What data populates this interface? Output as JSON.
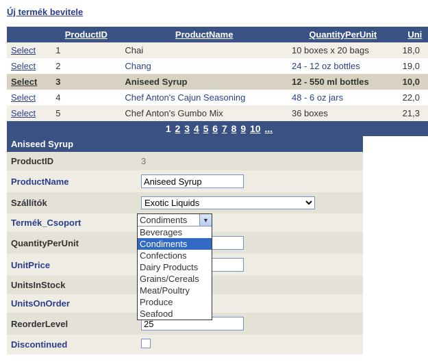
{
  "topLink": "Új termék bevitele",
  "grid": {
    "headers": [
      "",
      "ProductID",
      "ProductName",
      "QuantityPerUnit",
      "Uni"
    ],
    "selectLabel": "Select",
    "selectedIndex": 2,
    "rows": [
      {
        "id": "1",
        "name": "Chai",
        "qpu": "10 boxes x 20 bags",
        "price": "18,0",
        "nameLink": false
      },
      {
        "id": "2",
        "name": "Chang",
        "qpu": "24 - 12 oz bottles",
        "price": "19,0",
        "nameLink": true
      },
      {
        "id": "3",
        "name": "Aniseed Syrup",
        "qpu": "12 - 550 ml bottles",
        "price": "10,0",
        "nameLink": false
      },
      {
        "id": "4",
        "name": "Chef Anton's Cajun Seasoning",
        "qpu": "48 - 6 oz jars",
        "price": "22,0",
        "nameLink": true
      },
      {
        "id": "5",
        "name": "Chef Anton's Gumbo Mix",
        "qpu": "36 boxes",
        "price": "21,3",
        "nameLink": false
      }
    ]
  },
  "pager": {
    "pages": [
      "1",
      "2",
      "3",
      "4",
      "5",
      "6",
      "7",
      "8",
      "9",
      "10",
      "..."
    ],
    "current": 0
  },
  "detail": {
    "title": "Aniseed Syrup",
    "productId": "3",
    "productName": "Aniseed Syrup",
    "supplier": "Exotic Liquids",
    "categorySelected": "Condiments",
    "categoryOptions": [
      "Beverages",
      "Condiments",
      "Confections",
      "Dairy Products",
      "Grains/Cereals",
      "Meat/Poultry",
      "Produce",
      "Seafood"
    ],
    "qpu": "",
    "unitPrice": "",
    "reorderLevel": "25",
    "labels": {
      "productId": "ProductID",
      "productName": "ProductName",
      "supplier": "Szállítók",
      "category": "Termék_Csoport",
      "qpu": "QuantityPerUnit",
      "unitPrice": "UnitPrice",
      "unitsInStock": "UnitsInStock",
      "unitsOnOrder": "UnitsOnOrder",
      "reorderLevel": "ReorderLevel",
      "discontinued": "Discontinued"
    }
  }
}
